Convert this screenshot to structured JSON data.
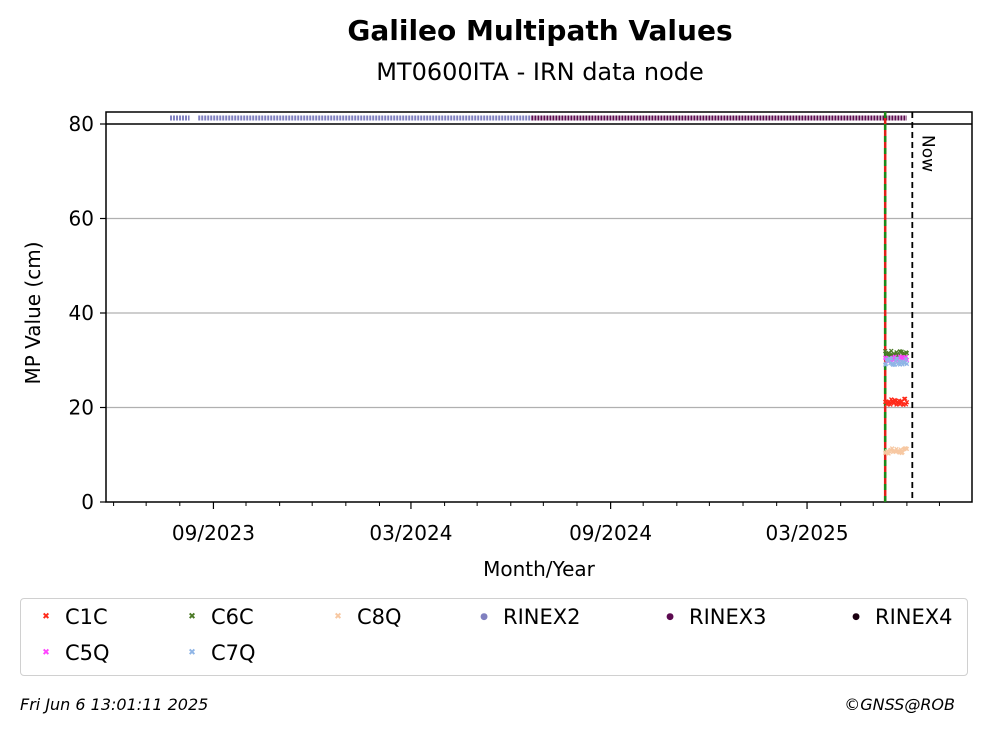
{
  "chart_data": {
    "type": "scatter",
    "title": "Galileo Multipath Values",
    "subtitle": "MT0600ITA - IRN data node",
    "xlabel": "Month/Year",
    "ylabel": "MP Value (cm)",
    "ylim": [
      0,
      80
    ],
    "yticks": [
      0,
      20,
      40,
      60,
      80
    ],
    "xlim": [
      "2023-05-25",
      "2025-07-31"
    ],
    "xticks": [
      {
        "date": "2023-09-01",
        "label": "09/2023"
      },
      {
        "date": "2024-03-01",
        "label": "03/2024"
      },
      {
        "date": "2024-09-01",
        "label": "09/2024"
      },
      {
        "date": "2025-03-01",
        "label": "03/2025"
      }
    ],
    "grid": "y",
    "now_label": "Now",
    "now_date": "2025-06-06",
    "vline_date": "2025-05-12",
    "series": [
      {
        "name": "C1C",
        "color": "#ff2a1a",
        "marker": "x",
        "x_start": "2025-05-12",
        "x_end": "2025-06-01",
        "y_mean": 21.2,
        "y_spread": 0.7
      },
      {
        "name": "C6C",
        "color": "#4b7a26",
        "marker": "x",
        "x_start": "2025-05-12",
        "x_end": "2025-06-01",
        "y_mean": 31.3,
        "y_spread": 0.7
      },
      {
        "name": "C8Q",
        "color": "#f7c8a2",
        "marker": "x",
        "x_start": "2025-05-12",
        "x_end": "2025-06-01",
        "y_mean": 10.8,
        "y_spread": 0.6
      },
      {
        "name": "C5Q",
        "color": "#ff44ff",
        "marker": "x",
        "x_start": "2025-05-12",
        "x_end": "2025-06-01",
        "y_mean": 30.3,
        "y_spread": 0.5
      },
      {
        "name": "C7Q",
        "color": "#8fb5e6",
        "marker": "x",
        "x_start": "2025-05-12",
        "x_end": "2025-06-01",
        "y_mean": 29.8,
        "y_spread": 0.8
      }
    ],
    "rinex_bars": [
      {
        "name": "RINEX2",
        "color": "#8080c0",
        "segments": [
          [
            "2023-07-23",
            "2023-08-10"
          ],
          [
            "2023-08-18",
            "2024-06-20"
          ]
        ]
      },
      {
        "name": "RINEX3",
        "color": "#5c0a50",
        "segments": [
          [
            "2024-06-20",
            "2025-06-01"
          ]
        ]
      },
      {
        "name": "RINEX4",
        "color": "#1a0010",
        "segments": []
      }
    ],
    "legend_placement": "bottom",
    "legend": [
      {
        "label": "C1C",
        "color": "#ff2a1a",
        "marker": "x"
      },
      {
        "label": "C6C",
        "color": "#4b7a26",
        "marker": "x"
      },
      {
        "label": "C8Q",
        "color": "#f7c8a2",
        "marker": "x"
      },
      {
        "label": "RINEX2",
        "color": "#8080c0",
        "marker": "dot"
      },
      {
        "label": "RINEX3",
        "color": "#5c0a50",
        "marker": "dot"
      },
      {
        "label": "RINEX4",
        "color": "#1a0010",
        "marker": "dot"
      },
      {
        "label": "C5Q",
        "color": "#ff44ff",
        "marker": "x"
      },
      {
        "label": "C7Q",
        "color": "#8fb5e6",
        "marker": "x"
      }
    ]
  },
  "footer": {
    "timestamp": "Fri Jun  6 13:01:11 2025",
    "credit": "©GNSS@ROB"
  }
}
